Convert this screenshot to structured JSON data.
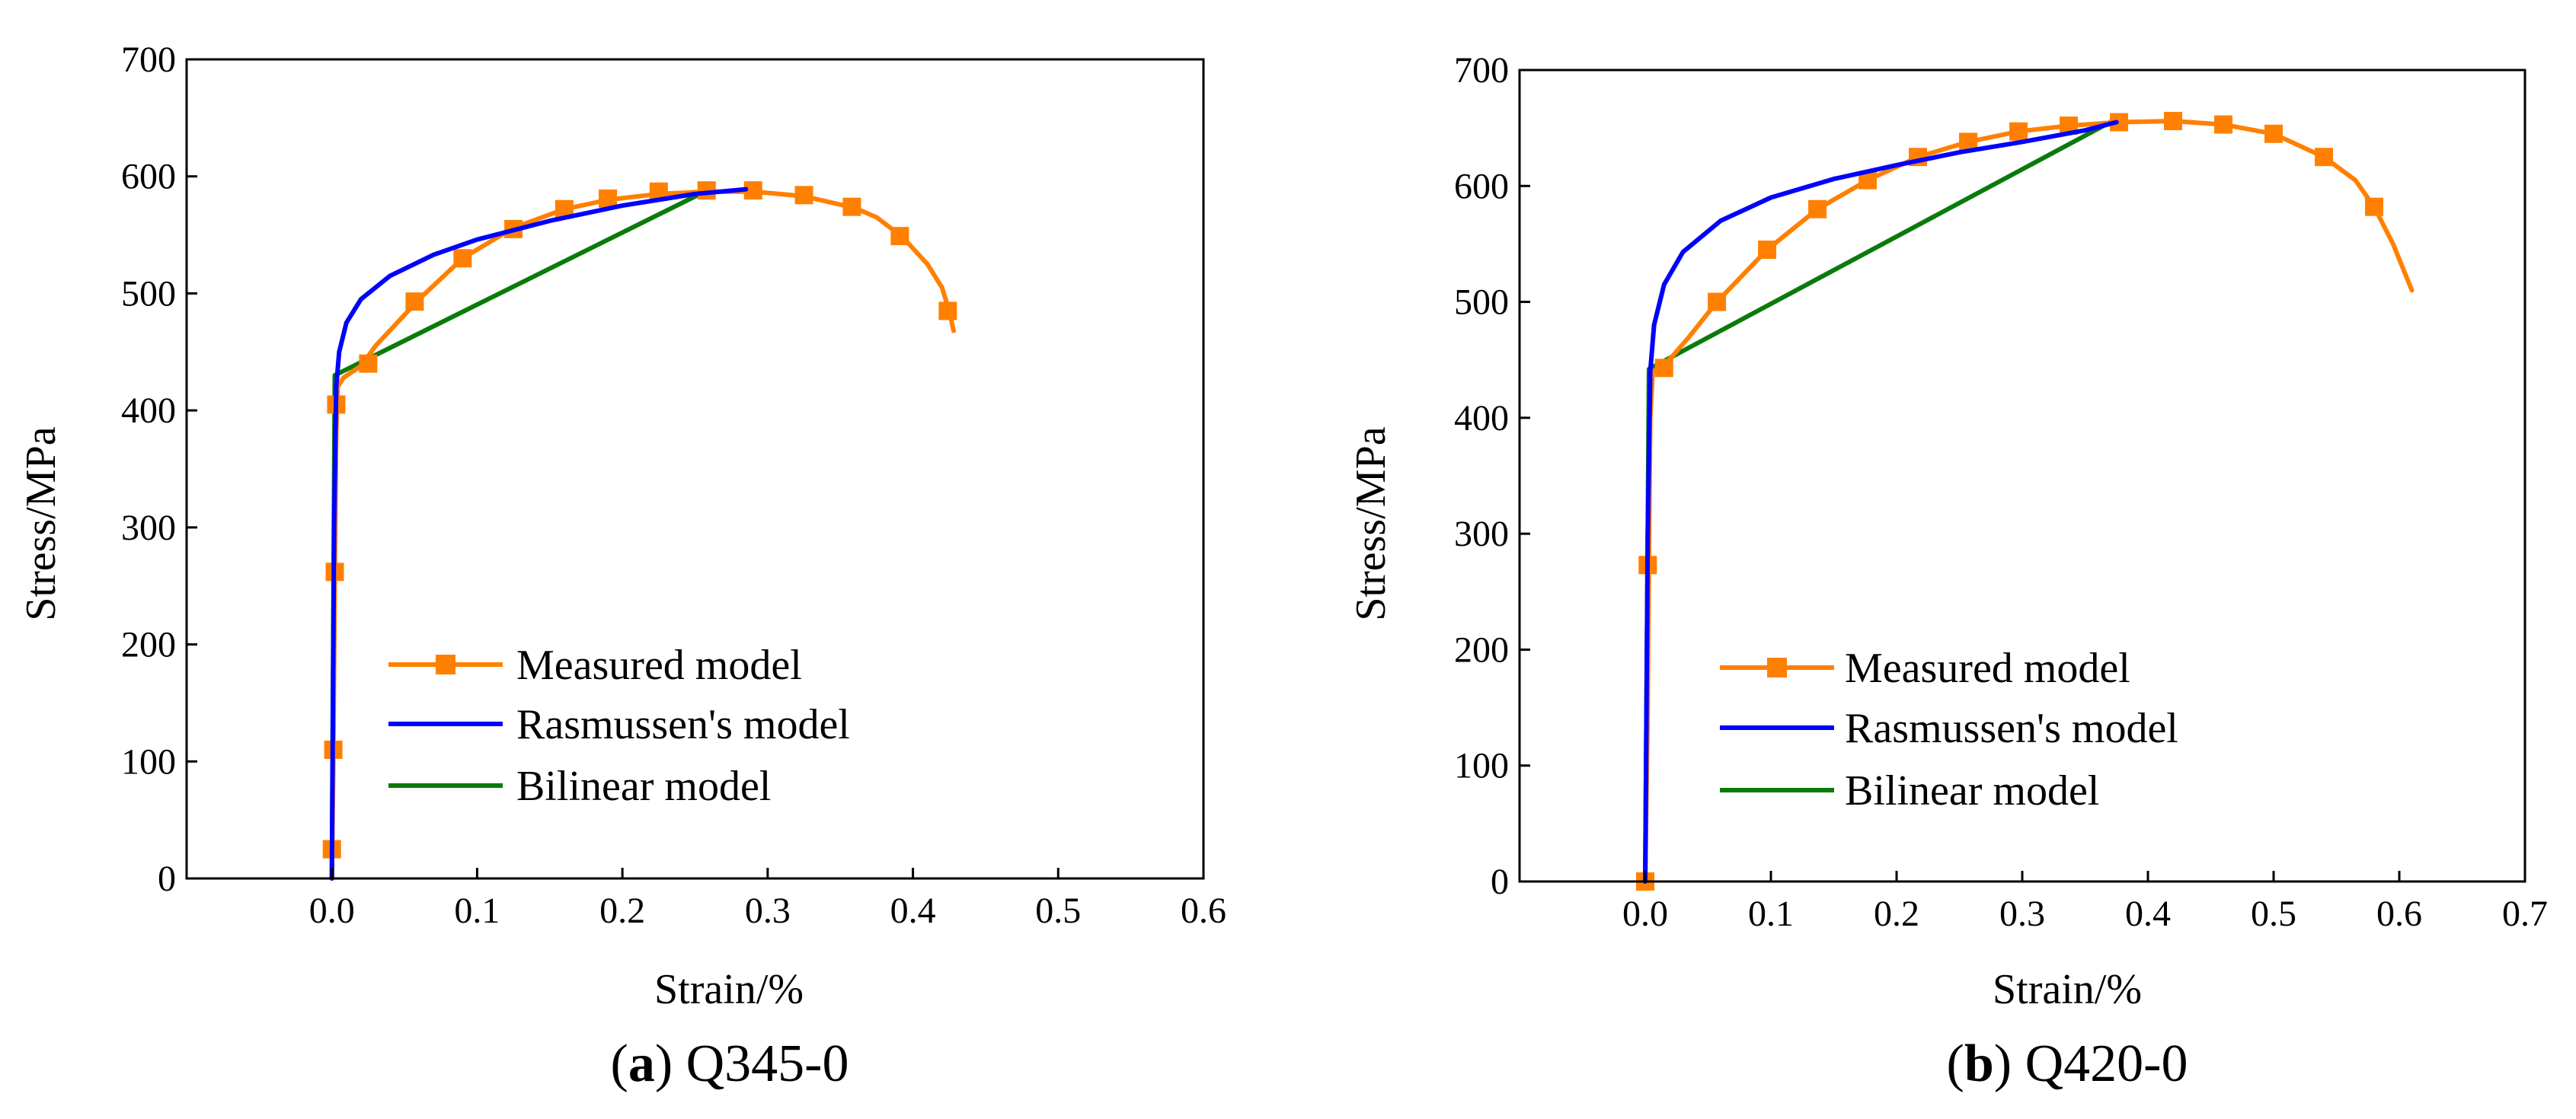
{
  "chart_data": [
    {
      "type": "line",
      "panel": "a",
      "caption": {
        "letter": "a",
        "open": "(",
        "close": ")",
        "text": " Q345-0"
      },
      "xlabel": "Strain/%",
      "ylabel": "Stress/MPa",
      "xlim": [
        -0.1,
        0.6
      ],
      "ylim": [
        0,
        700
      ],
      "xticks": [
        0.0,
        0.1,
        0.2,
        0.3,
        0.4,
        0.5,
        0.6
      ],
      "xtick_labels": [
        "0.0",
        "0.1",
        "0.2",
        "0.3",
        "0.4",
        "0.5",
        "0.6"
      ],
      "yticks": [
        0,
        100,
        200,
        300,
        400,
        500,
        600,
        700
      ],
      "ytick_labels": [
        "0",
        "100",
        "200",
        "300",
        "400",
        "500",
        "600",
        "700"
      ],
      "legend_position": "lower-center",
      "series": [
        {
          "name": "Measured model",
          "color": "#ff8000",
          "marker": "square",
          "curve": [
            [
              0.0,
              0
            ],
            [
              0.001,
              100
            ],
            [
              0.002,
              250
            ],
            [
              0.003,
              380
            ],
            [
              0.004,
              420
            ],
            [
              0.008,
              428
            ],
            [
              0.02,
              438
            ],
            [
              0.03,
              455
            ],
            [
              0.045,
              475
            ],
            [
              0.06,
              495
            ],
            [
              0.09,
              530
            ],
            [
              0.125,
              556
            ],
            [
              0.16,
              572
            ],
            [
              0.19,
              580
            ],
            [
              0.225,
              585
            ],
            [
              0.258,
              587
            ],
            [
              0.29,
              587
            ],
            [
              0.325,
              583
            ],
            [
              0.36,
              573
            ],
            [
              0.375,
              565
            ],
            [
              0.393,
              548
            ],
            [
              0.41,
              525
            ],
            [
              0.42,
              505
            ],
            [
              0.425,
              485
            ],
            [
              0.428,
              468
            ]
          ],
          "markers": [
            [
              0.0,
              25
            ],
            [
              0.001,
              110
            ],
            [
              0.002,
              262
            ],
            [
              0.003,
              405
            ],
            [
              0.025,
              440
            ],
            [
              0.057,
              493
            ],
            [
              0.09,
              530
            ],
            [
              0.125,
              555
            ],
            [
              0.16,
              572
            ],
            [
              0.19,
              581
            ],
            [
              0.225,
              587
            ],
            [
              0.258,
              588
            ],
            [
              0.29,
              588
            ],
            [
              0.325,
              584
            ],
            [
              0.358,
              574
            ],
            [
              0.391,
              549
            ],
            [
              0.424,
              485
            ]
          ]
        },
        {
          "name": "Rasmussen's model",
          "color": "#0000ff",
          "curve": [
            [
              0.0,
              0
            ],
            [
              0.0015,
              300
            ],
            [
              0.003,
              420
            ],
            [
              0.005,
              450
            ],
            [
              0.01,
              475
            ],
            [
              0.02,
              495
            ],
            [
              0.04,
              515
            ],
            [
              0.07,
              533
            ],
            [
              0.1,
              546
            ],
            [
              0.15,
              562
            ],
            [
              0.2,
              575
            ],
            [
              0.25,
              585
            ],
            [
              0.285,
              589
            ]
          ]
        },
        {
          "name": "Bilinear model",
          "color": "#0a7a0a",
          "curve": [
            [
              0.0,
              0
            ],
            [
              0.002,
              430
            ],
            [
              0.26,
              589
            ]
          ]
        }
      ]
    },
    {
      "type": "line",
      "panel": "b",
      "caption": {
        "letter": "b",
        "open": "(",
        "close": ")",
        "text": " Q420-0"
      },
      "xlabel": "Strain/%",
      "ylabel": "Stress/MPa",
      "xlim": [
        -0.1,
        0.7
      ],
      "ylim": [
        0,
        700
      ],
      "xticks": [
        0.0,
        0.1,
        0.2,
        0.3,
        0.4,
        0.5,
        0.6,
        0.7
      ],
      "xtick_labels": [
        "0.0",
        "0.1",
        "0.2",
        "0.3",
        "0.4",
        "0.5",
        "0.6",
        "0.7"
      ],
      "yticks": [
        0,
        100,
        200,
        300,
        400,
        500,
        600,
        700
      ],
      "ytick_labels": [
        "0",
        "100",
        "200",
        "300",
        "400",
        "500",
        "600",
        "700"
      ],
      "legend_position": "lower-center",
      "series": [
        {
          "name": "Measured model",
          "color": "#ff8000",
          "marker": "square",
          "curve": [
            [
              0.0,
              0
            ],
            [
              0.002,
              150
            ],
            [
              0.003,
              280
            ],
            [
              0.004,
              400
            ],
            [
              0.006,
              440
            ],
            [
              0.015,
              445
            ],
            [
              0.035,
              470
            ],
            [
              0.057,
              500
            ],
            [
              0.097,
              545
            ],
            [
              0.137,
              580
            ],
            [
              0.177,
              605
            ],
            [
              0.217,
              625
            ],
            [
              0.257,
              638
            ],
            [
              0.297,
              647
            ],
            [
              0.337,
              652
            ],
            [
              0.377,
              655
            ],
            [
              0.42,
              656
            ],
            [
              0.46,
              653
            ],
            [
              0.5,
              645
            ],
            [
              0.54,
              625
            ],
            [
              0.565,
              605
            ],
            [
              0.58,
              582
            ],
            [
              0.595,
              550
            ],
            [
              0.61,
              510
            ]
          ],
          "markers": [
            [
              0.0,
              0
            ],
            [
              0.002,
              273
            ],
            [
              0.015,
              443
            ],
            [
              0.057,
              500
            ],
            [
              0.097,
              545
            ],
            [
              0.137,
              580
            ],
            [
              0.177,
              605
            ],
            [
              0.217,
              625
            ],
            [
              0.257,
              638
            ],
            [
              0.297,
              647
            ],
            [
              0.337,
              652
            ],
            [
              0.377,
              655
            ],
            [
              0.42,
              656
            ],
            [
              0.46,
              653
            ],
            [
              0.5,
              645
            ],
            [
              0.54,
              625
            ],
            [
              0.58,
              582
            ]
          ]
        },
        {
          "name": "Rasmussen's model",
          "color": "#0000ff",
          "curve": [
            [
              0.0,
              0
            ],
            [
              0.002,
              300
            ],
            [
              0.004,
              440
            ],
            [
              0.007,
              480
            ],
            [
              0.015,
              515
            ],
            [
              0.03,
              543
            ],
            [
              0.06,
              570
            ],
            [
              0.1,
              590
            ],
            [
              0.15,
              606
            ],
            [
              0.2,
              618
            ],
            [
              0.25,
              629
            ],
            [
              0.3,
              638
            ],
            [
              0.35,
              648
            ],
            [
              0.375,
              655
            ]
          ]
        },
        {
          "name": "Bilinear model",
          "color": "#0a7a0a",
          "curve": [
            [
              0.0,
              0
            ],
            [
              0.003,
              442
            ],
            [
              0.37,
              655
            ]
          ]
        }
      ]
    }
  ]
}
